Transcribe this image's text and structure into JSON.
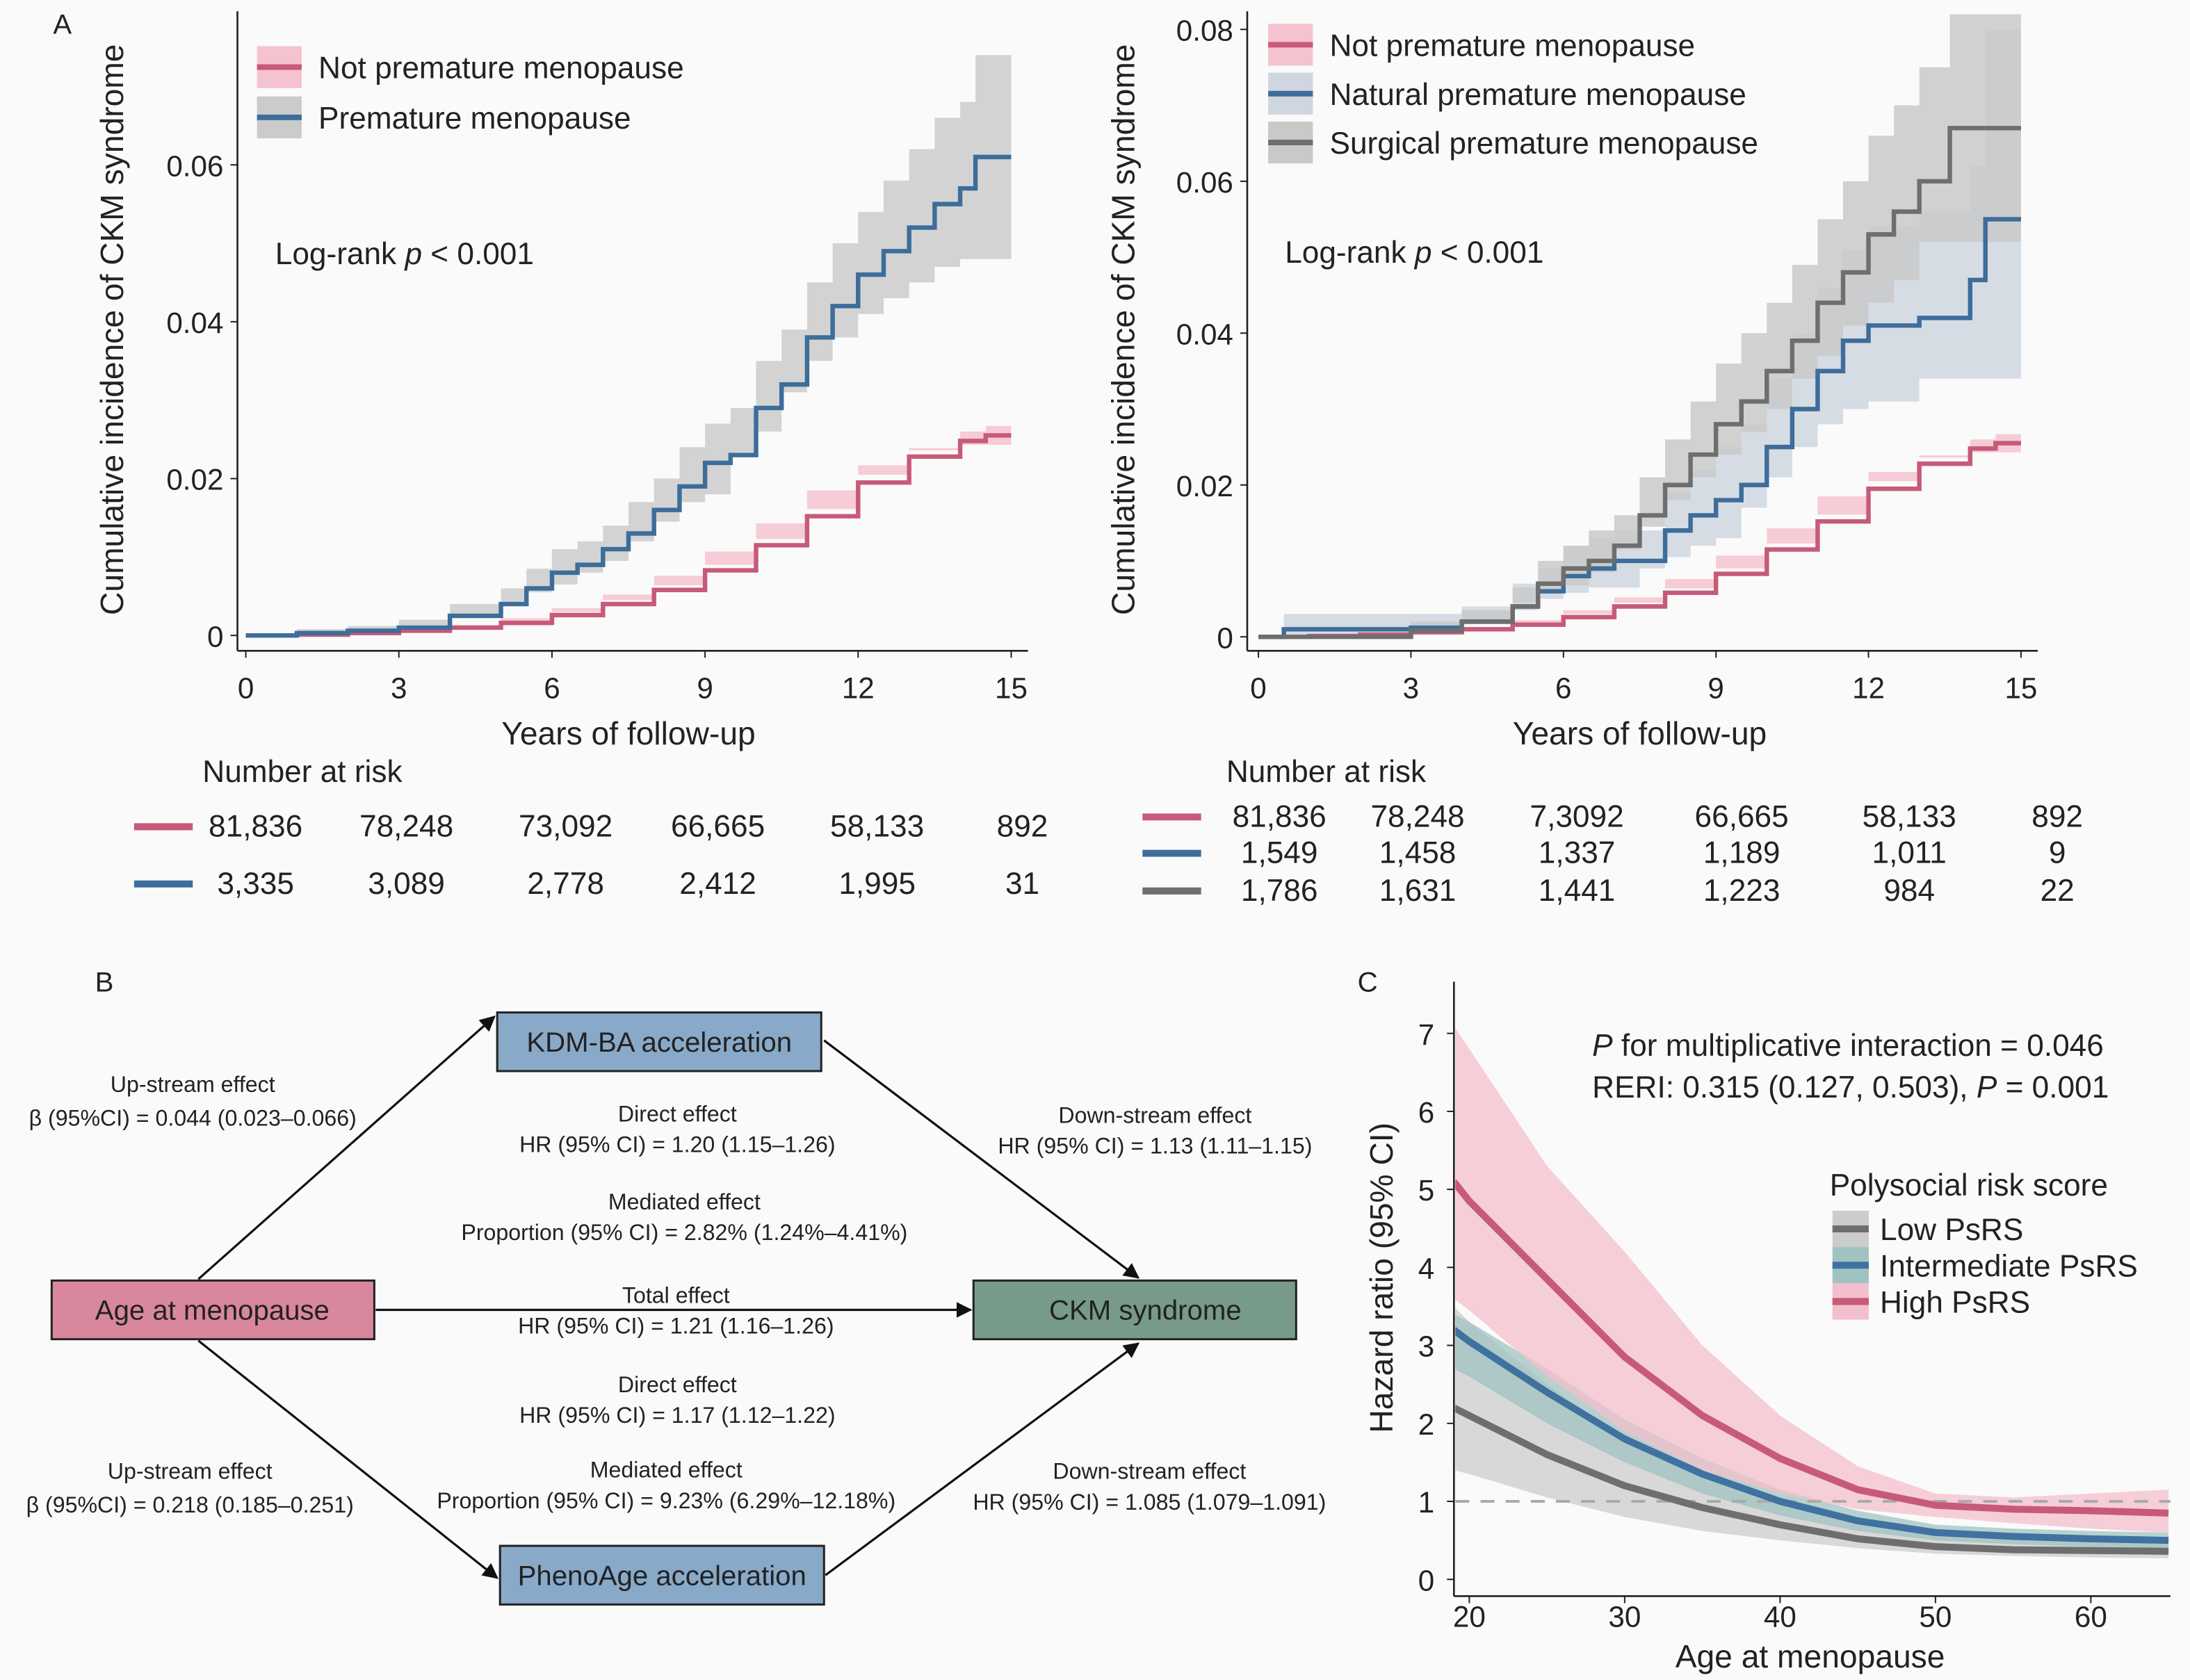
{
  "panel_labels": {
    "a": "A",
    "b": "B",
    "c": "C"
  },
  "colors": {
    "not_premature": "#c75a78",
    "not_premature_band": "#f4c3cf",
    "premature": "#3d6d9a",
    "premature_band": "#cbcbcb",
    "natural": "#3d6d9a",
    "natural_band": "#cfd6df",
    "surgical": "#6e6e6e",
    "surgical_band": "#c9c9c9",
    "high": "#c75a78",
    "high_band": "#f3bfcc",
    "intermediate": "#3f72a0",
    "intermediate_band": "#9fc3c0",
    "low": "#6e6e6e",
    "low_band": "#cccccc",
    "box_blue": "#89a9c8",
    "box_pink": "#d9879d",
    "box_green": "#779a8b"
  },
  "chart_data": [
    {
      "type": "line",
      "panel": "A-left",
      "title": "",
      "xlabel": "Years of follow-up",
      "ylabel": "Cumulative incidence of CKM syndrome",
      "xlim": [
        0,
        15
      ],
      "ylim": [
        0,
        0.08
      ],
      "xticks": [
        0,
        3,
        6,
        9,
        12,
        15
      ],
      "xtick_labels": [
        "0",
        "3",
        "6",
        "9",
        "12",
        "15"
      ],
      "yticks": [
        0,
        0.02,
        0.04,
        0.06
      ],
      "ytick_labels": [
        "0",
        "0.02",
        "0.04",
        "0.06"
      ],
      "grid": false,
      "legend_placement": "top-left",
      "annotation": {
        "prefix": "Log-rank ",
        "p": "p",
        "suffix": " < 0.001"
      },
      "series": [
        {
          "name": "Not premature menopause",
          "color_key": "not_premature",
          "x": [
            0,
            1,
            2,
            3,
            4,
            5,
            6,
            7,
            8,
            9,
            10,
            11,
            12,
            13,
            14,
            14.5,
            15
          ],
          "y": [
            0,
            0.0001,
            0.0003,
            0.0006,
            0.001,
            0.0016,
            0.0026,
            0.004,
            0.0058,
            0.0083,
            0.0115,
            0.0152,
            0.0195,
            0.0228,
            0.0248,
            0.0255,
            0.0255
          ],
          "lower": [
            0,
            0,
            0.0001,
            0.0004,
            0.0008,
            0.0013,
            0.0022,
            0.0035,
            0.0052,
            0.0076,
            0.0107,
            0.0143,
            0.0185,
            0.0217,
            0.0236,
            0.0243,
            0.0243
          ],
          "upper": [
            0,
            0.0002,
            0.0005,
            0.0008,
            0.0012,
            0.0019,
            0.003,
            0.0045,
            0.0064,
            0.009,
            0.0123,
            0.0161,
            0.0205,
            0.0239,
            0.026,
            0.0267,
            0.0267
          ]
        },
        {
          "name": "Premature menopause",
          "color_key": "premature",
          "x": [
            0,
            1,
            2,
            3,
            4,
            5,
            5.5,
            6,
            6.5,
            7,
            7.5,
            8,
            8.5,
            9,
            9.5,
            10,
            10.5,
            11,
            11.5,
            12,
            12.5,
            13,
            13.5,
            14,
            14.3,
            15
          ],
          "y": [
            0,
            0.0003,
            0.0006,
            0.001,
            0.0025,
            0.004,
            0.006,
            0.008,
            0.009,
            0.011,
            0.013,
            0.016,
            0.019,
            0.022,
            0.023,
            0.029,
            0.032,
            0.038,
            0.042,
            0.046,
            0.049,
            0.052,
            0.055,
            0.057,
            0.061,
            0.061
          ],
          "lower": [
            0,
            0,
            0.0001,
            0.0004,
            0.0013,
            0.0025,
            0.004,
            0.0055,
            0.0065,
            0.008,
            0.0095,
            0.012,
            0.0145,
            0.017,
            0.018,
            0.023,
            0.026,
            0.031,
            0.035,
            0.038,
            0.041,
            0.043,
            0.045,
            0.047,
            0.048,
            0.048
          ],
          "upper": [
            0,
            0.0008,
            0.0012,
            0.002,
            0.004,
            0.006,
            0.0085,
            0.011,
            0.012,
            0.014,
            0.017,
            0.02,
            0.024,
            0.027,
            0.029,
            0.035,
            0.039,
            0.045,
            0.05,
            0.054,
            0.058,
            0.062,
            0.066,
            0.068,
            0.074,
            0.074
          ]
        }
      ],
      "risk_table": {
        "title": "Number at risk",
        "rows": [
          {
            "color_key": "not_premature",
            "values": [
              "81,836",
              "78,248",
              "73,092",
              "66,665",
              "58,133",
              "892"
            ]
          },
          {
            "color_key": "premature",
            "values": [
              "3,335",
              "3,089",
              "2,778",
              "2,412",
              "1,995",
              "31"
            ]
          }
        ]
      }
    },
    {
      "type": "line",
      "panel": "A-right",
      "title": "",
      "xlabel": "Years of follow-up",
      "ylabel": "Cumulative incidence of CKM syndrome",
      "xlim": [
        0,
        15
      ],
      "ylim": [
        0,
        0.08
      ],
      "xticks": [
        0,
        3,
        6,
        9,
        12,
        15
      ],
      "xtick_labels": [
        "0",
        "3",
        "6",
        "9",
        "12",
        "15"
      ],
      "yticks": [
        0,
        0.02,
        0.04,
        0.06,
        0.08
      ],
      "ytick_labels": [
        "0",
        "0.02",
        "0.04",
        "0.06",
        "0.08"
      ],
      "grid": false,
      "legend_placement": "top-left",
      "annotation": {
        "prefix": "Log-rank ",
        "p": "p",
        "suffix": " < 0.001"
      },
      "series": [
        {
          "name": "Not premature menopause",
          "color_key": "not_premature",
          "x": [
            0,
            1,
            2,
            3,
            4,
            5,
            6,
            7,
            8,
            9,
            10,
            11,
            12,
            13,
            14,
            14.5,
            15
          ],
          "y": [
            0,
            0.0001,
            0.0003,
            0.0006,
            0.001,
            0.0016,
            0.0026,
            0.004,
            0.0058,
            0.0083,
            0.0115,
            0.0152,
            0.0195,
            0.0228,
            0.0248,
            0.0255,
            0.0255
          ],
          "lower": [
            0,
            0,
            0.0001,
            0.0004,
            0.0008,
            0.0013,
            0.0022,
            0.0035,
            0.0052,
            0.0076,
            0.0107,
            0.0143,
            0.0185,
            0.0217,
            0.0236,
            0.0243,
            0.0243
          ],
          "upper": [
            0,
            0.0002,
            0.0005,
            0.0008,
            0.0012,
            0.0019,
            0.003,
            0.0045,
            0.0064,
            0.009,
            0.0123,
            0.0161,
            0.0205,
            0.0239,
            0.026,
            0.0267,
            0.0267
          ]
        },
        {
          "name": "Natural premature menopause",
          "color_key": "natural",
          "x": [
            0,
            0.5,
            3,
            4,
            5,
            5.5,
            6,
            6.5,
            7,
            7.5,
            8,
            8.5,
            9,
            9.5,
            10,
            10.5,
            11,
            11.5,
            12,
            13,
            14,
            14.3,
            15
          ],
          "y": [
            0,
            0.001,
            0.0012,
            0.002,
            0.004,
            0.006,
            0.008,
            0.009,
            0.01,
            0.01,
            0.014,
            0.016,
            0.018,
            0.02,
            0.025,
            0.03,
            0.035,
            0.039,
            0.041,
            0.042,
            0.047,
            0.055,
            0.055
          ],
          "lower": [
            0,
            0,
            0.0002,
            0.0008,
            0.002,
            0.0035,
            0.005,
            0.0058,
            0.0065,
            0.0065,
            0.009,
            0.0105,
            0.012,
            0.013,
            0.017,
            0.021,
            0.025,
            0.028,
            0.03,
            0.031,
            0.034,
            0.034,
            0.034
          ],
          "upper": [
            0,
            0.003,
            0.003,
            0.004,
            0.007,
            0.009,
            0.012,
            0.013,
            0.014,
            0.014,
            0.019,
            0.022,
            0.025,
            0.028,
            0.034,
            0.04,
            0.046,
            0.051,
            0.054,
            0.056,
            0.062,
            0.08,
            0.08
          ]
        },
        {
          "name": "Surgical premature menopause",
          "color_key": "surgical",
          "x": [
            0,
            3,
            4,
            5,
            5.5,
            6,
            6.5,
            7,
            7.5,
            8,
            8.5,
            9,
            9.5,
            10,
            10.5,
            11,
            11.5,
            12,
            12.5,
            13,
            13.6,
            15
          ],
          "y": [
            0,
            0.0008,
            0.002,
            0.004,
            0.007,
            0.009,
            0.01,
            0.012,
            0.016,
            0.02,
            0.024,
            0.028,
            0.031,
            0.035,
            0.039,
            0.044,
            0.048,
            0.053,
            0.056,
            0.06,
            0.067,
            0.067
          ],
          "lower": [
            0,
            0,
            0.0008,
            0.002,
            0.0045,
            0.006,
            0.0068,
            0.0085,
            0.0115,
            0.0145,
            0.018,
            0.021,
            0.024,
            0.027,
            0.03,
            0.034,
            0.037,
            0.041,
            0.044,
            0.047,
            0.052,
            0.052
          ],
          "upper": [
            0,
            0.002,
            0.0035,
            0.0065,
            0.01,
            0.012,
            0.014,
            0.016,
            0.021,
            0.026,
            0.031,
            0.036,
            0.04,
            0.044,
            0.049,
            0.055,
            0.06,
            0.066,
            0.07,
            0.075,
            0.082,
            0.082
          ]
        }
      ],
      "risk_table": {
        "title": "Number at risk",
        "rows": [
          {
            "color_key": "not_premature",
            "values": [
              "81,836",
              "78,248",
              "7,3092",
              "66,665",
              "58,133",
              "892"
            ]
          },
          {
            "color_key": "natural",
            "values": [
              "1,549",
              "1,458",
              "1,337",
              "1,189",
              "1,011",
              "9"
            ]
          },
          {
            "color_key": "surgical",
            "values": [
              "1,786",
              "1,631",
              "1,441",
              "1,223",
              "984",
              "22"
            ]
          }
        ]
      }
    },
    {
      "type": "line",
      "panel": "C",
      "title": "",
      "xlabel": "Age at menopause",
      "ylabel": "Hazard ratio (95% CI)",
      "xlim": [
        19,
        65
      ],
      "ylim": [
        0,
        7.4
      ],
      "xticks": [
        20,
        30,
        40,
        50,
        60
      ],
      "xtick_labels": [
        "20",
        "30",
        "40",
        "50",
        "60"
      ],
      "yticks": [
        0,
        1,
        2,
        3,
        4,
        5,
        6,
        7
      ],
      "ytick_labels": [
        "0",
        "1",
        "2",
        "3",
        "4",
        "5",
        "6",
        "7"
      ],
      "grid": false,
      "reference_line": 1,
      "legend_placement": "right",
      "legend_title": "Polysocial risk score",
      "annotations": {
        "line1_p": "P",
        "line1_rest": " for multiplicative interaction = 0.046",
        "line2_prefix": "RERI: 0.315 (0.127, 0.503), ",
        "line2_p": "P",
        "line2_rest": " = 0.001"
      },
      "series": [
        {
          "name": "Low PsRS",
          "color_key": "low",
          "x": [
            19,
            20,
            25,
            30,
            35,
            40,
            45,
            50,
            55,
            60,
            65
          ],
          "y": [
            2.2,
            2.1,
            1.6,
            1.2,
            0.92,
            0.7,
            0.52,
            0.42,
            0.38,
            0.37,
            0.36
          ],
          "lower": [
            1.4,
            1.35,
            1.05,
            0.8,
            0.62,
            0.5,
            0.4,
            0.33,
            0.3,
            0.28,
            0.27
          ],
          "upper": [
            3.5,
            3.3,
            2.5,
            1.8,
            1.3,
            0.95,
            0.7,
            0.55,
            0.5,
            0.48,
            0.46
          ]
        },
        {
          "name": "Intermediate PsRS",
          "color_key": "intermediate",
          "x": [
            19,
            20,
            25,
            30,
            35,
            40,
            45,
            50,
            55,
            60,
            65
          ],
          "y": [
            3.2,
            3.05,
            2.4,
            1.8,
            1.35,
            1.0,
            0.75,
            0.6,
            0.55,
            0.52,
            0.5
          ],
          "lower": [
            2.7,
            2.6,
            2.0,
            1.5,
            1.1,
            0.82,
            0.62,
            0.5,
            0.45,
            0.42,
            0.4
          ],
          "upper": [
            3.4,
            3.3,
            2.7,
            2.05,
            1.55,
            1.15,
            0.88,
            0.7,
            0.65,
            0.62,
            0.6
          ]
        },
        {
          "name": "High PsRS",
          "color_key": "high",
          "x": [
            19,
            20,
            25,
            30,
            35,
            40,
            45,
            50,
            55,
            60,
            65
          ],
          "y": [
            5.1,
            4.85,
            3.85,
            2.85,
            2.1,
            1.55,
            1.15,
            0.95,
            0.9,
            0.88,
            0.85
          ],
          "lower": [
            3.6,
            3.45,
            2.6,
            1.9,
            1.4,
            1.1,
            0.9,
            0.8,
            0.72,
            0.65,
            0.6
          ],
          "upper": [
            7.1,
            6.8,
            5.3,
            4.2,
            3.0,
            2.1,
            1.45,
            1.1,
            1.05,
            1.1,
            1.15
          ]
        }
      ]
    }
  ],
  "diagram": {
    "nodes": {
      "kdm": "KDM-BA acceleration",
      "age": "Age at menopause",
      "ckm": "CKM syndrome",
      "pheno": "PhenoAge acceleration"
    },
    "labels": {
      "up1_title": "Up-stream effect",
      "up1_value": "β (95%CI) = 0.044 (0.023–0.066)",
      "direct1_title": "Direct effect",
      "direct1_value": "HR (95% CI) = 1.20 (1.15–1.26)",
      "down1_title": "Down-stream effect",
      "down1_value": "HR (95% CI) = 1.13 (1.11–1.15)",
      "med1_title": "Mediated effect",
      "med1_value": "Proportion (95% CI) = 2.82% (1.24%–4.41%)",
      "total_title": "Total effect",
      "total_value": "HR (95% CI) = 1.21 (1.16–1.26)",
      "direct2_title": "Direct effect",
      "direct2_value": "HR (95% CI) = 1.17 (1.12–1.22)",
      "up2_title": "Up-stream effect",
      "up2_value": "β (95%CI) = 0.218 (0.185–0.251)",
      "med2_title": "Mediated effect",
      "med2_value": "Proportion (95% CI) = 9.23% (6.29%–12.18%)",
      "down2_title": "Down-stream effect",
      "down2_value": "HR (95% CI) = 1.085 (1.079–1.091)"
    }
  }
}
